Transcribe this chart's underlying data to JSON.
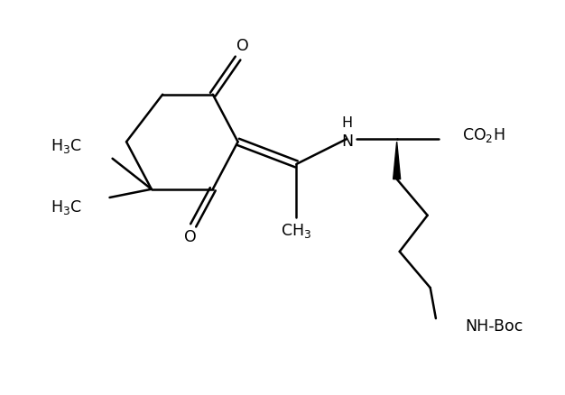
{
  "background": "#ffffff",
  "line_color": "#000000",
  "line_width": 1.8,
  "font_size": 12.5,
  "figsize": [
    6.26,
    4.38
  ],
  "dpi": 100,
  "xlim": [
    0,
    10
  ],
  "ylim": [
    0,
    7
  ]
}
